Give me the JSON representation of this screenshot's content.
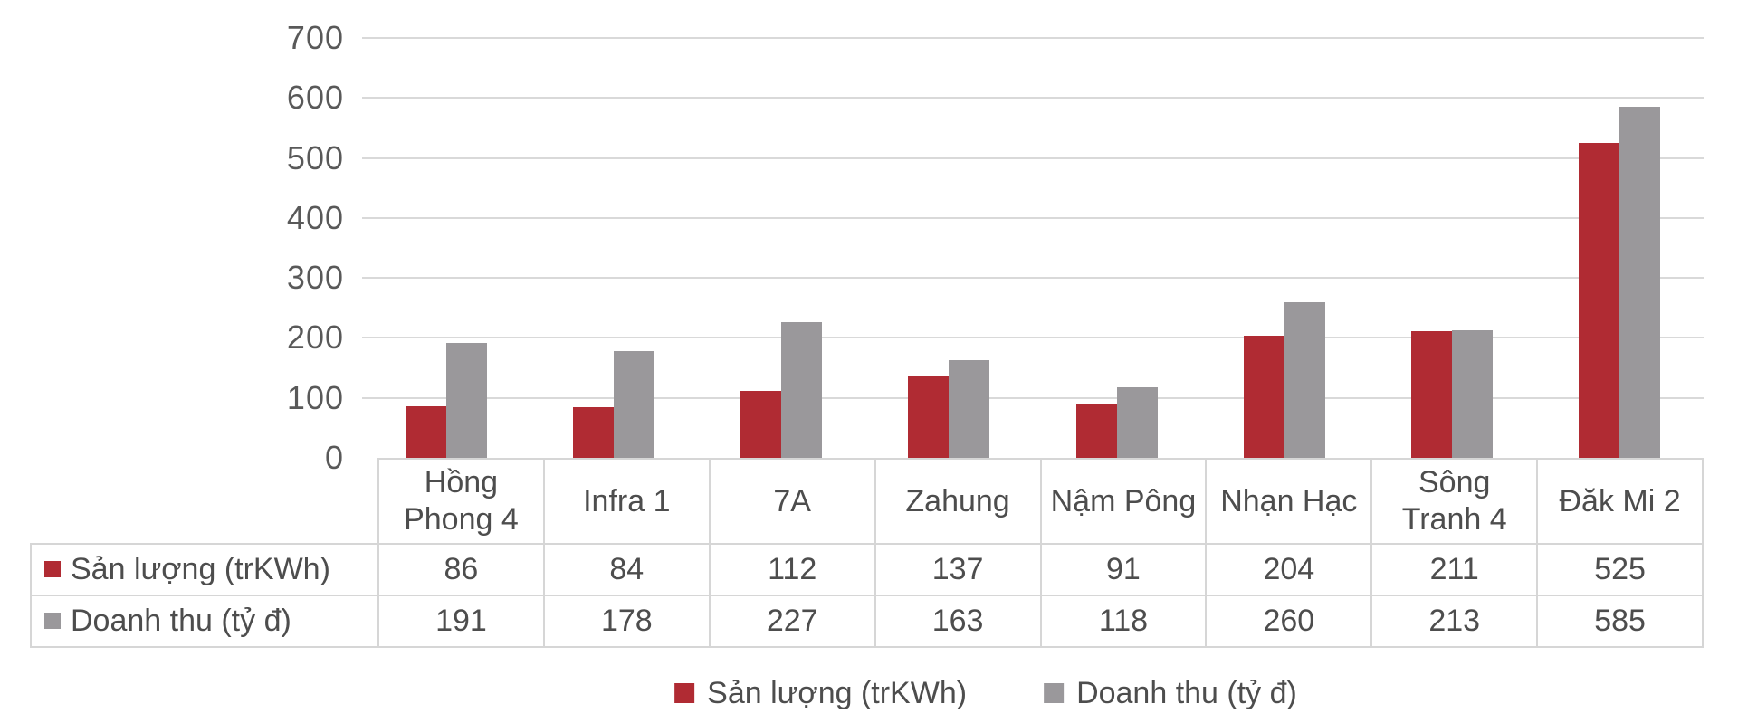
{
  "chart_data": {
    "type": "bar",
    "title": "",
    "xlabel": "",
    "ylabel": "",
    "categories": [
      "Hồng Phong 4",
      "Infra 1",
      "7A",
      "Zahung",
      "Nậm Pông",
      "Nhạn Hạc",
      "Sông Tranh 4",
      "Đăk Mi 2"
    ],
    "series": [
      {
        "name": "Sản lượng (trKWh)",
        "color": "#B02B33",
        "values": [
          86,
          84,
          112,
          137,
          91,
          204,
          211,
          525
        ]
      },
      {
        "name": "Doanh thu (tỷ đ)",
        "color": "#9A989B",
        "values": [
          191,
          178,
          227,
          163,
          118,
          260,
          213,
          585
        ]
      }
    ],
    "ylim": [
      0,
      700
    ],
    "yticks": [
      0,
      100,
      200,
      300,
      400,
      500,
      600,
      700
    ],
    "grid": true,
    "legend_position": "bottom",
    "data_table_shown": true
  },
  "colors": {
    "gridline": "#D9D9D9",
    "table_border": "#D6D6D6",
    "axis_text": "#595959",
    "table_text": "#4D4D4D",
    "background": "#FFFFFF"
  }
}
